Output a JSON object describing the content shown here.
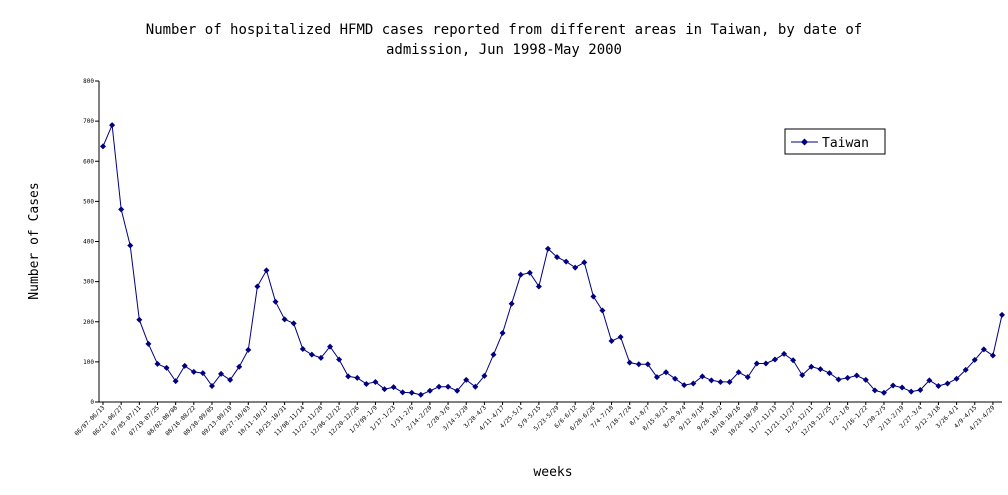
{
  "colors": {
    "series": "#000080",
    "axis": "#000000",
    "background": "#ffffff"
  },
  "chart_data": {
    "type": "line",
    "title_line1": "Number of hospitalized HFMD cases reported from different areas in Taiwan, by date of",
    "title_line2": "admission, Jun 1998-May 2000",
    "xlabel": "weeks",
    "ylabel": "Number of Cases",
    "ylim": [
      0,
      800
    ],
    "yticks": [
      0,
      100,
      200,
      300,
      400,
      500,
      600,
      700,
      800
    ],
    "grid": false,
    "legend_position": "top-right",
    "x_tick_labels": [
      "06/07-06/13",
      "06/21-06/27",
      "07/05-07/11",
      "07/19-07/25",
      "08/02-08/08",
      "08/16-08/22",
      "08/30-09/05",
      "09/13-09/19",
      "09/27-10/03",
      "10/11-10/17",
      "10/25-10/31",
      "11/08-11/14",
      "11/22-11/28",
      "12/06-12/12",
      "12/20-12/26",
      "1/3/99-1/9",
      "1/17-1/23",
      "1/31-2/6",
      "2/14-2/20",
      "2/28-3/6",
      "3/14-3/20",
      "3/28-4/3",
      "4/11-4/17",
      "4/25-5/1",
      "5/9-5/15",
      "5/23-5/29",
      "6/6-6/12",
      "6/20-6/26",
      "7/4-7/10",
      "7/18-7/24",
      "8/1-8/7",
      "8/15-8/21",
      "8/29-9/4",
      "9/12-9/18",
      "9/26-10/2",
      "10/10-10/16",
      "10/24-10/30",
      "11/7-11/13",
      "11/21-11/27",
      "12/5-12/11",
      "12/19-12/25",
      "1/2-1/8",
      "1/16-1/22",
      "1/30-2/5",
      "2/13-2/19",
      "2/27-3/4",
      "3/12-3/18",
      "3/26-4/1",
      "4/9-4/15",
      "4/23-4/29"
    ],
    "series": [
      {
        "name": "Taiwan",
        "values": [
          637,
          690,
          480,
          390,
          205,
          145,
          95,
          85,
          52,
          90,
          75,
          72,
          40,
          70,
          55,
          88,
          130,
          288,
          328,
          250,
          206,
          196,
          132,
          118,
          110,
          138,
          106,
          64,
          60,
          45,
          50,
          32,
          37,
          24,
          23,
          18,
          28,
          38,
          38,
          28,
          55,
          38,
          65,
          118,
          172,
          245,
          317,
          322,
          288,
          382,
          361,
          350,
          335,
          348,
          263,
          228,
          152,
          162,
          98,
          94,
          94,
          62,
          74,
          58,
          42,
          46,
          64,
          54,
          50,
          50,
          74,
          62,
          96,
          96,
          106,
          120,
          104,
          67,
          88,
          82,
          72,
          56,
          60,
          66,
          55,
          29,
          23,
          41,
          36,
          26,
          30,
          54,
          40,
          46,
          58,
          80,
          105,
          131,
          116,
          217
        ]
      }
    ]
  }
}
